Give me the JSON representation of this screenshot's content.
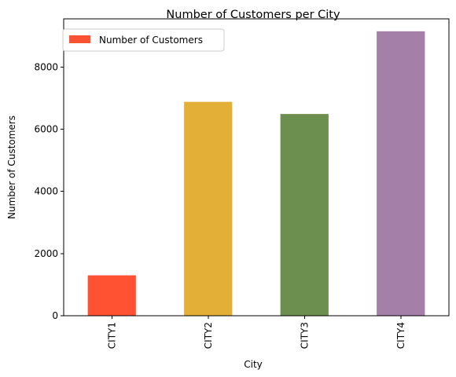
{
  "chart_data": {
    "type": "bar",
    "title": "Number of Customers per City",
    "xlabel": "City",
    "ylabel": "Number of Customers",
    "categories": [
      "CITY1",
      "CITY2",
      "CITY3",
      "CITY4"
    ],
    "series": [
      {
        "name": "Number of Customers",
        "values": [
          1300,
          6880,
          6490,
          9150
        ]
      }
    ],
    "bar_colors": [
      "#ff5232",
      "#e3af37",
      "#6c8f4f",
      "#a47fa8"
    ],
    "yticks": [
      0,
      2000,
      4000,
      6000,
      8000
    ],
    "ylim": [
      0,
      9550
    ],
    "grid": false,
    "legend_position": "top-left"
  }
}
